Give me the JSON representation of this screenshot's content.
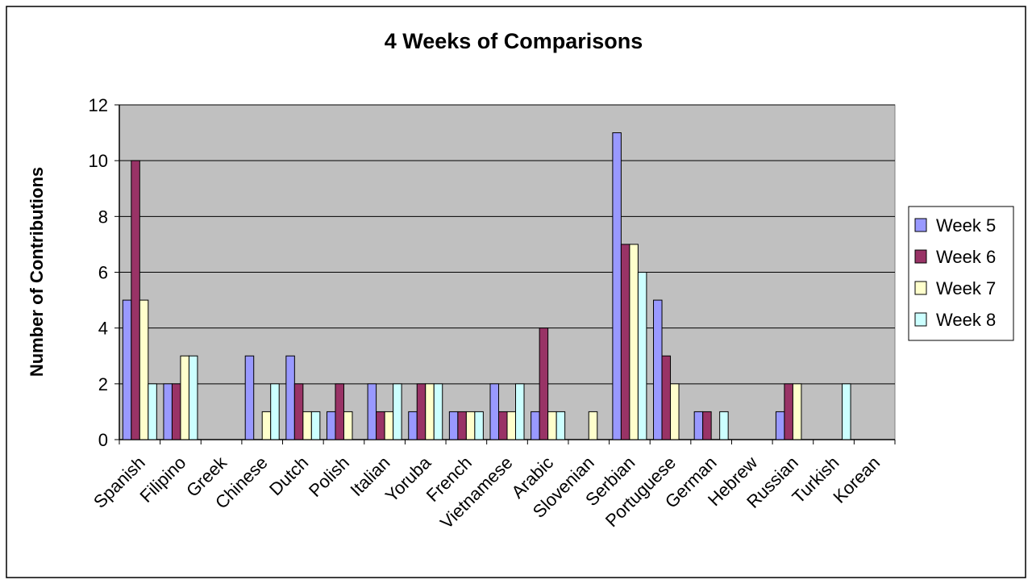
{
  "chart_data": {
    "type": "bar",
    "title": "4 Weeks of Comparisons",
    "xlabel": "",
    "ylabel": "Number of Contributions",
    "ylim": [
      0,
      12
    ],
    "yticks": [
      0,
      2,
      4,
      6,
      8,
      10,
      12
    ],
    "grid": true,
    "legend_position": "right",
    "categories": [
      "Spanish",
      "Filipino",
      "Greek",
      "Chinese",
      "Dutch",
      "Polish",
      "Italian",
      "Yoruba",
      "French",
      "Vietnamese",
      "Arabic",
      "Slovenian",
      "Serbian",
      "Portuguese",
      "German",
      "Hebrew",
      "Russian",
      "Turkish",
      "Korean"
    ],
    "series": [
      {
        "name": "Week 5",
        "color": "#9999ff",
        "values": [
          5,
          2,
          0,
          3,
          3,
          1,
          2,
          1,
          1,
          2,
          1,
          0,
          11,
          5,
          1,
          0,
          1,
          0,
          0
        ]
      },
      {
        "name": "Week 6",
        "color": "#993366",
        "values": [
          10,
          2,
          0,
          0,
          2,
          2,
          1,
          2,
          1,
          1,
          4,
          0,
          7,
          3,
          1,
          0,
          2,
          0,
          0
        ]
      },
      {
        "name": "Week 7",
        "color": "#ffffcc",
        "values": [
          5,
          3,
          0,
          1,
          1,
          1,
          1,
          2,
          1,
          1,
          1,
          1,
          7,
          2,
          0,
          0,
          2,
          0,
          0
        ]
      },
      {
        "name": "Week 8",
        "color": "#ccffff",
        "values": [
          2,
          3,
          0,
          2,
          1,
          0,
          2,
          2,
          1,
          2,
          1,
          0,
          6,
          0,
          1,
          0,
          0,
          2,
          0
        ]
      }
    ],
    "plot_background": "#c0c0c0"
  }
}
